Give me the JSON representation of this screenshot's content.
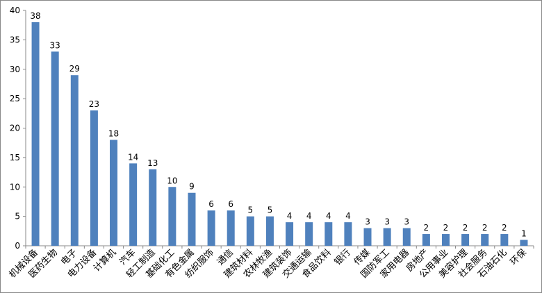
{
  "chart_data": {
    "type": "bar",
    "categories": [
      "机械设备",
      "医药生物",
      "电子",
      "电力设备",
      "计算机",
      "汽车",
      "轻工制造",
      "基础化工",
      "有色金属",
      "纺织服饰",
      "通信",
      "建筑材料",
      "农林牧渔",
      "建筑装饰",
      "交通运输",
      "食品饮料",
      "银行",
      "传媒",
      "国防军工",
      "家用电器",
      "房地产",
      "公用事业",
      "美容护理",
      "社会服务",
      "石油石化",
      "环保"
    ],
    "values": [
      38,
      33,
      29,
      23,
      18,
      14,
      13,
      10,
      9,
      6,
      6,
      5,
      5,
      4,
      4,
      4,
      4,
      3,
      3,
      3,
      2,
      2,
      2,
      2,
      2,
      1
    ],
    "color": "#4f81bd",
    "ylim": [
      0,
      40
    ],
    "yticks": [
      0,
      5,
      10,
      15,
      20,
      25,
      30,
      35,
      40
    ],
    "grid": false
  }
}
